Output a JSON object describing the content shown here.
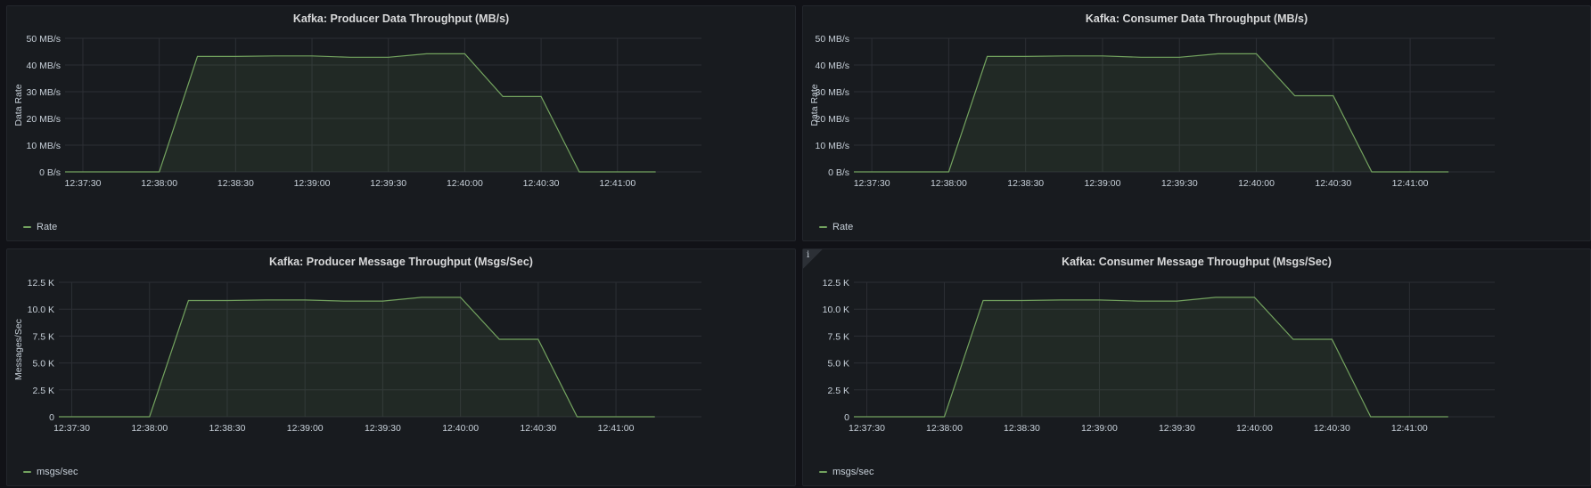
{
  "colors": {
    "series": "#73a35f",
    "fill": "rgba(115,163,95,0.10)",
    "grid": "#2c2f35",
    "text": "#c7d0d9"
  },
  "chart_data": [
    {
      "type": "area",
      "title": "Kafka: Producer Data Throughput (MB/s)",
      "ylabel": "Data Rate",
      "ylim": [
        0,
        50
      ],
      "y_ticks": [
        0,
        10,
        20,
        30,
        40,
        50
      ],
      "y_tick_labels": [
        "0 B/s",
        "10 MB/s",
        "20 MB/s",
        "30 MB/s",
        "40 MB/s",
        "50 MB/s"
      ],
      "x_tick_labels": [
        "12:37:30",
        "12:38:00",
        "12:38:30",
        "12:39:00",
        "12:39:30",
        "12:40:00",
        "12:40:30",
        "12:41:00"
      ],
      "xlim": [
        "12:37:23",
        "12:41:33"
      ],
      "grid": true,
      "legend_position": "bottom-left",
      "series": [
        {
          "name": "Rate",
          "x": [
            "12:37:23",
            "12:37:45",
            "12:38:00",
            "12:38:15",
            "12:38:30",
            "12:38:45",
            "12:39:00",
            "12:39:15",
            "12:39:30",
            "12:39:45",
            "12:40:00",
            "12:40:15",
            "12:40:30",
            "12:40:45",
            "12:41:00",
            "12:41:15"
          ],
          "values": [
            0,
            0,
            0,
            43.2,
            43.2,
            43.4,
            43.4,
            42.9,
            42.9,
            44.2,
            44.2,
            28.2,
            28.2,
            0,
            0,
            0
          ]
        }
      ]
    },
    {
      "type": "area",
      "title": "Kafka: Consumer Data Throughput (MB/s)",
      "ylabel": "Data Rate",
      "ylim": [
        0,
        50
      ],
      "y_ticks": [
        0,
        10,
        20,
        30,
        40,
        50
      ],
      "y_tick_labels": [
        "0 B/s",
        "10 MB/s",
        "20 MB/s",
        "30 MB/s",
        "40 MB/s",
        "50 MB/s"
      ],
      "x_tick_labels": [
        "12:37:30",
        "12:38:00",
        "12:38:30",
        "12:39:00",
        "12:39:30",
        "12:40:00",
        "12:40:30",
        "12:41:00"
      ],
      "xlim": [
        "12:37:23",
        "12:41:33"
      ],
      "grid": true,
      "legend_position": "bottom-left",
      "series": [
        {
          "name": "Rate",
          "x": [
            "12:37:23",
            "12:37:45",
            "12:38:00",
            "12:38:15",
            "12:38:30",
            "12:38:45",
            "12:39:00",
            "12:39:15",
            "12:39:30",
            "12:39:45",
            "12:40:00",
            "12:40:15",
            "12:40:30",
            "12:40:45",
            "12:41:00",
            "12:41:15"
          ],
          "values": [
            0,
            0,
            0,
            43.2,
            43.2,
            43.4,
            43.4,
            42.9,
            42.9,
            44.2,
            44.2,
            28.5,
            28.5,
            0,
            0,
            0
          ]
        }
      ]
    },
    {
      "type": "area",
      "title": "Kafka: Producer Message Throughput (Msgs/Sec)",
      "ylabel": "Messages/Sec",
      "ylim": [
        0,
        12500
      ],
      "y_ticks": [
        0,
        2500,
        5000,
        7500,
        10000,
        12500
      ],
      "y_tick_labels": [
        "0",
        "2.5 K",
        "5.0 K",
        "7.5 K",
        "10.0 K",
        "12.5 K"
      ],
      "x_tick_labels": [
        "12:37:30",
        "12:38:00",
        "12:38:30",
        "12:39:00",
        "12:39:30",
        "12:40:00",
        "12:40:30",
        "12:41:00"
      ],
      "xlim": [
        "12:37:25",
        "12:41:33"
      ],
      "grid": true,
      "legend_position": "bottom-left",
      "series": [
        {
          "name": "msgs/sec",
          "x": [
            "12:37:25",
            "12:37:45",
            "12:38:00",
            "12:38:15",
            "12:38:30",
            "12:38:45",
            "12:39:00",
            "12:39:15",
            "12:39:30",
            "12:39:45",
            "12:40:00",
            "12:40:15",
            "12:40:30",
            "12:40:45",
            "12:41:00",
            "12:41:15"
          ],
          "values": [
            0,
            0,
            0,
            10800,
            10800,
            10850,
            10850,
            10750,
            10750,
            11100,
            11100,
            7200,
            7200,
            0,
            0,
            0
          ]
        }
      ]
    },
    {
      "type": "area",
      "title": "Kafka: Consumer Message Throughput (Msgs/Sec)",
      "ylabel": "",
      "ylim": [
        0,
        12500
      ],
      "y_ticks": [
        0,
        2500,
        5000,
        7500,
        10000,
        12500
      ],
      "y_tick_labels": [
        "0",
        "2.5 K",
        "5.0 K",
        "7.5 K",
        "10.0 K",
        "12.5 K"
      ],
      "x_tick_labels": [
        "12:37:30",
        "12:38:00",
        "12:38:30",
        "12:39:00",
        "12:39:30",
        "12:40:00",
        "12:40:30",
        "12:41:00"
      ],
      "xlim": [
        "12:37:25",
        "12:41:33"
      ],
      "grid": true,
      "legend_position": "bottom-left",
      "series": [
        {
          "name": "msgs/sec",
          "x": [
            "12:37:25",
            "12:37:45",
            "12:38:00",
            "12:38:15",
            "12:38:30",
            "12:38:45",
            "12:39:00",
            "12:39:15",
            "12:39:30",
            "12:39:45",
            "12:40:00",
            "12:40:15",
            "12:40:30",
            "12:40:45",
            "12:41:00",
            "12:41:15"
          ],
          "values": [
            0,
            0,
            0,
            10800,
            10800,
            10850,
            10850,
            10750,
            10750,
            11100,
            11100,
            7200,
            7200,
            0,
            0,
            0
          ]
        }
      ]
    }
  ],
  "panels": [
    {
      "info_icon": ""
    },
    {
      "info_icon": ""
    },
    {
      "info_icon": ""
    },
    {
      "info_icon": "i"
    }
  ]
}
